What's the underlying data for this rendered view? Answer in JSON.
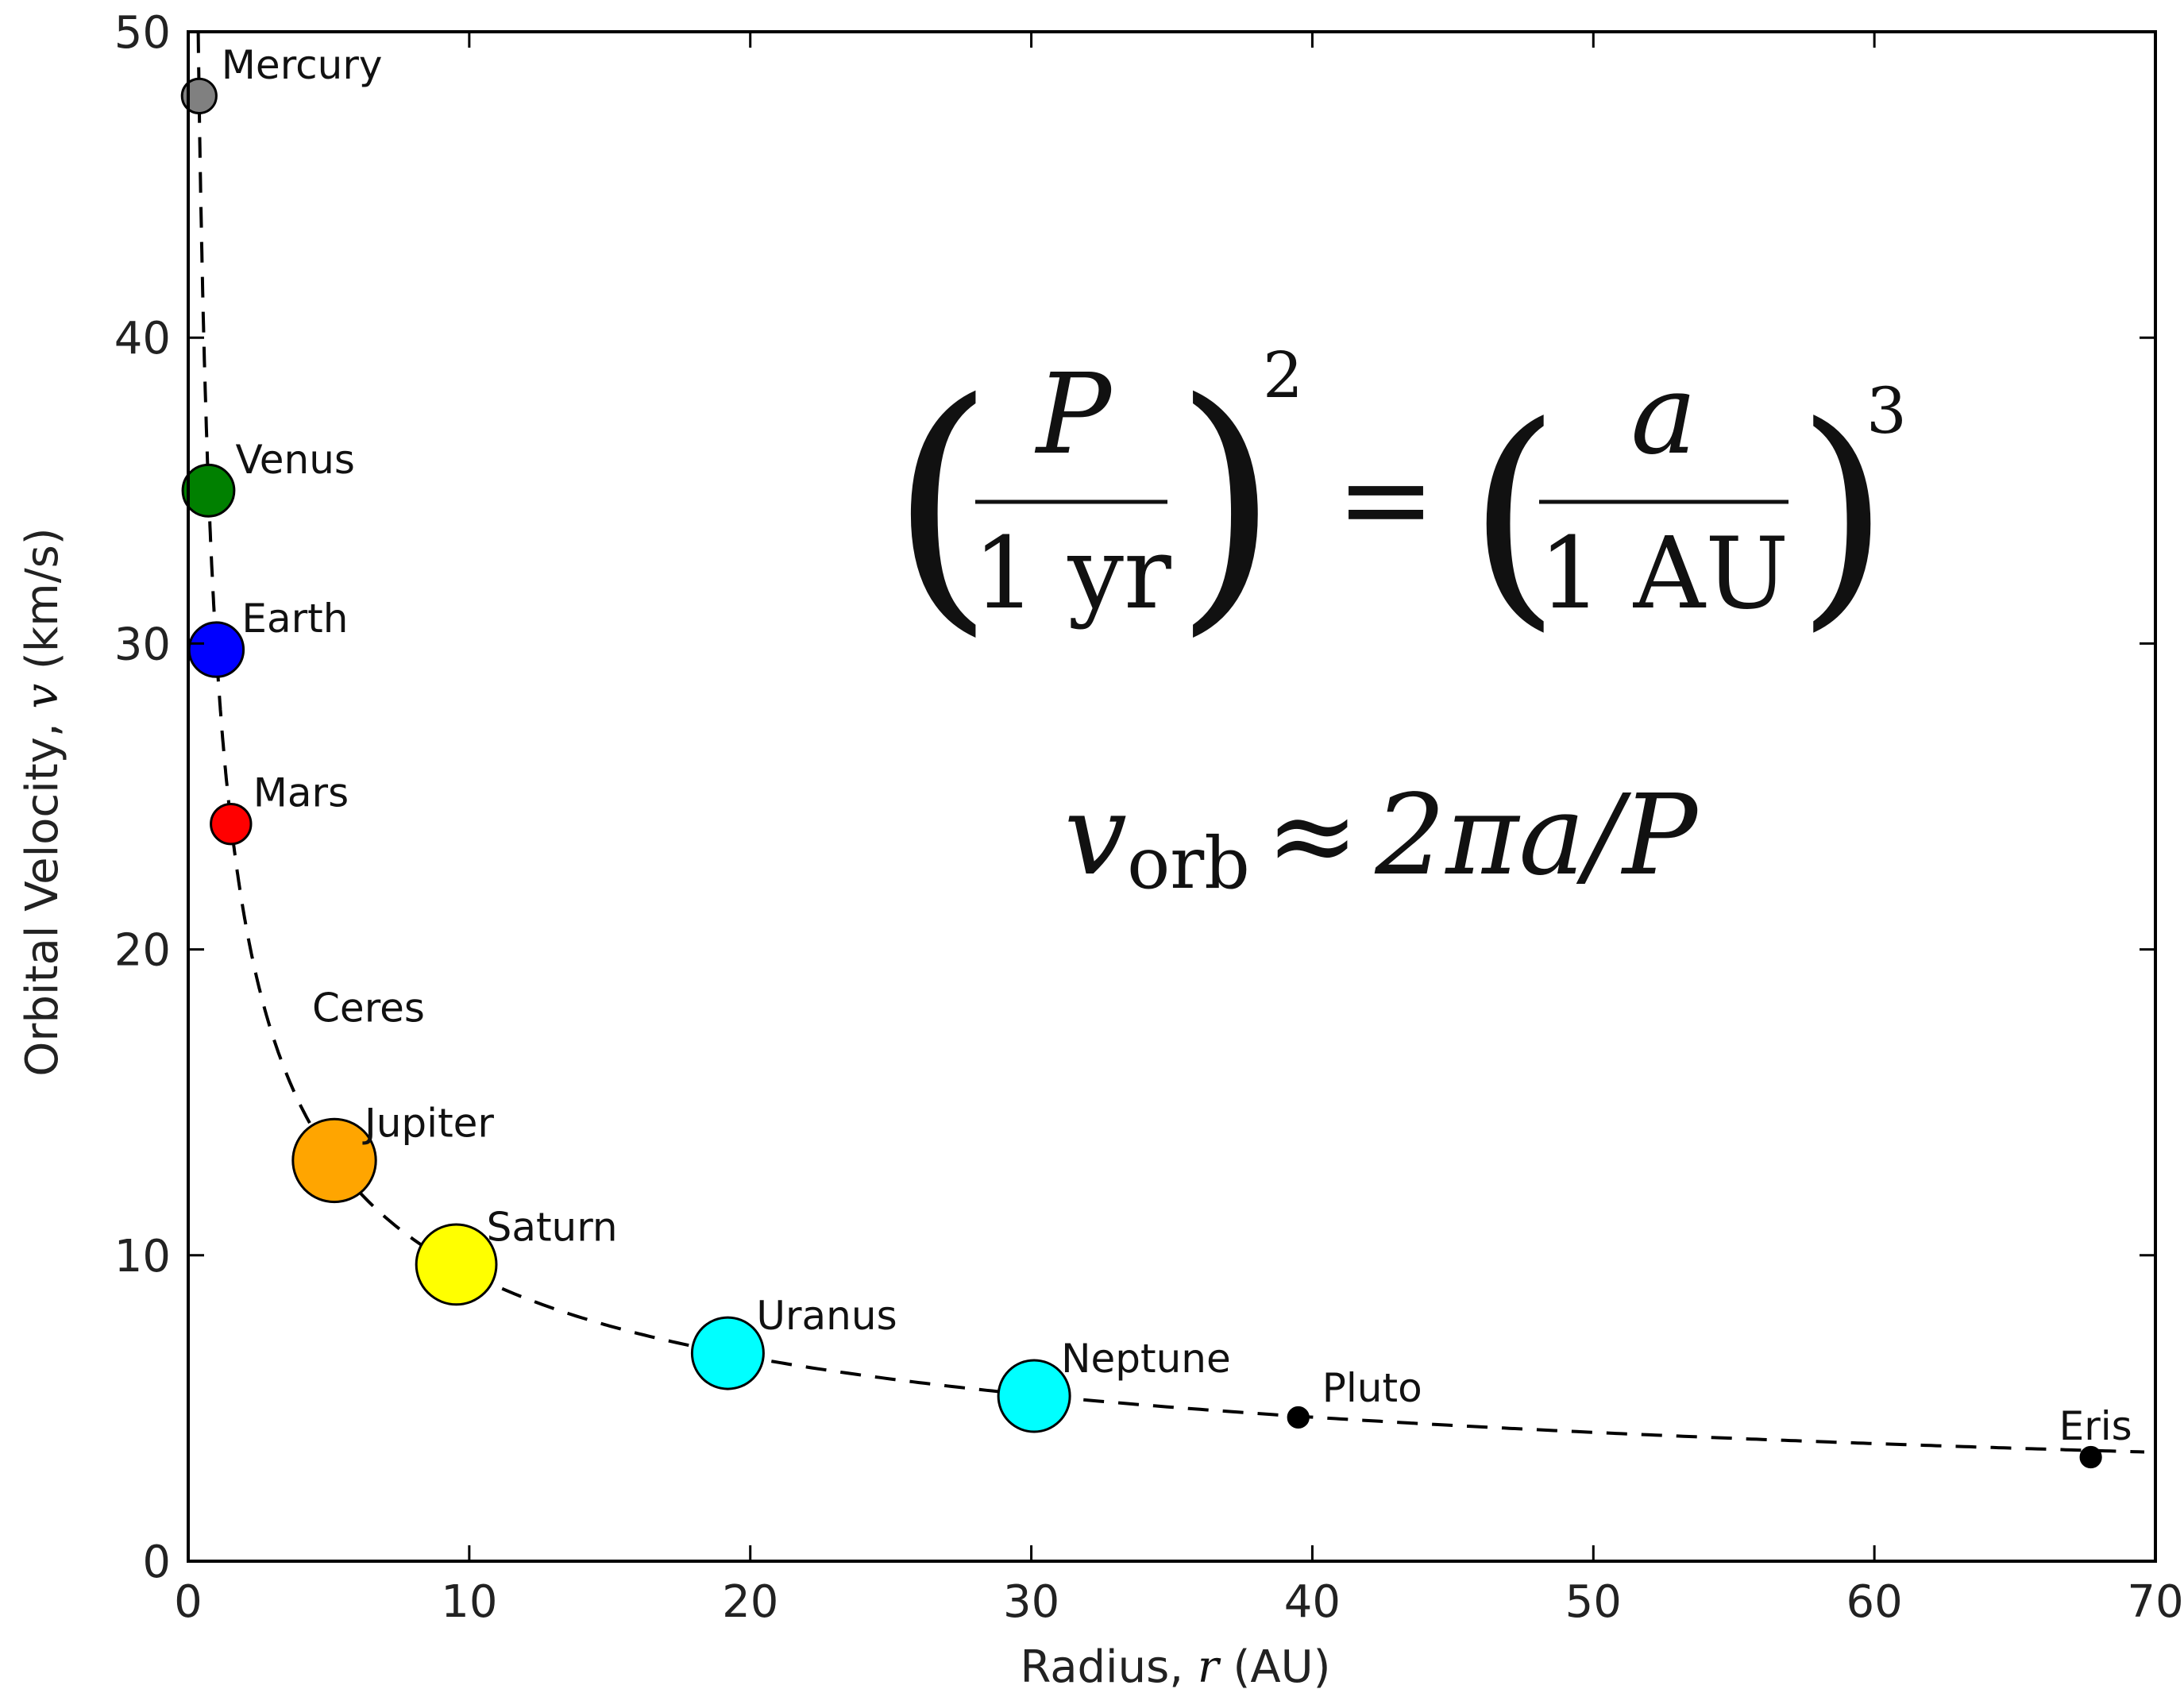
{
  "chart_data": {
    "type": "scatter",
    "xlabel_prefix": "Radius, ",
    "xlabel_var": "r",
    "xlabel_unit": " (AU)",
    "ylabel_prefix": "Orbital Velocity, ",
    "ylabel_var": "v",
    "ylabel_unit": " (km/s)",
    "xlim": [
      0,
      70
    ],
    "ylim": [
      0,
      50
    ],
    "xticks": [
      0,
      10,
      20,
      30,
      40,
      50,
      60,
      70
    ],
    "yticks": [
      0,
      10,
      20,
      30,
      40,
      50
    ],
    "grid": false,
    "fit_curve": {
      "style": "dashed",
      "color": "#000000",
      "formula": "v = 29.78 / sqrt(r)"
    },
    "points": [
      {
        "name": "Mercury",
        "x": 0.39,
        "y": 47.9,
        "color": "#808080",
        "size": 0.6
      },
      {
        "name": "Venus",
        "x": 0.72,
        "y": 35.0,
        "color": "#008000",
        "size": 0.9
      },
      {
        "name": "Earth",
        "x": 1.0,
        "y": 29.8,
        "color": "#0000ff",
        "size": 0.95
      },
      {
        "name": "Mars",
        "x": 1.52,
        "y": 24.1,
        "color": "#ff0000",
        "size": 0.7
      },
      {
        "name": "Ceres",
        "x": 2.77,
        "y": 17.9,
        "color": "none",
        "size": 0
      },
      {
        "name": "Jupiter",
        "x": 5.2,
        "y": 13.1,
        "color": "#ffa500",
        "size": 1.45
      },
      {
        "name": "Saturn",
        "x": 9.54,
        "y": 9.7,
        "color": "#ffff00",
        "size": 1.4
      },
      {
        "name": "Uranus",
        "x": 19.2,
        "y": 6.8,
        "color": "#00ffff",
        "size": 1.25
      },
      {
        "name": "Neptune",
        "x": 30.1,
        "y": 5.4,
        "color": "#00ffff",
        "size": 1.25
      },
      {
        "name": "Pluto",
        "x": 39.5,
        "y": 4.7,
        "color": "#000000",
        "size": 0.35
      },
      {
        "name": "Eris",
        "x": 67.7,
        "y": 3.4,
        "color": "#000000",
        "size": 0.35
      }
    ],
    "annotations": {
      "kepler": {
        "lhs_num": "P",
        "lhs_den": "1 yr",
        "lhs_exp": "2",
        "eq": "=",
        "rhs_num": "a",
        "rhs_den": "1 AU",
        "rhs_exp": "3"
      },
      "velocity": {
        "v": "v",
        "sub": "orb",
        "approx": "≈",
        "rhs": "2πa/P"
      }
    }
  }
}
